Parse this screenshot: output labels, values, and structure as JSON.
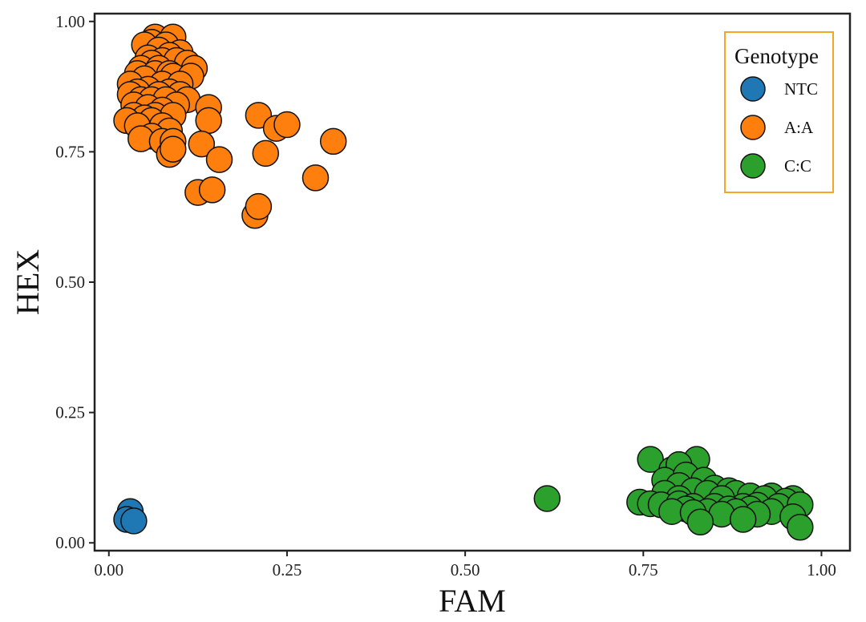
{
  "chart_data": {
    "type": "scatter",
    "xlabel": "FAM",
    "ylabel": "HEX",
    "xlim": [
      -0.02,
      1.04
    ],
    "ylim": [
      -0.015,
      1.015
    ],
    "x_ticks": [
      "0.00",
      "0.25",
      "0.50",
      "0.75",
      "1.00"
    ],
    "y_ticks": [
      "0.00",
      "0.25",
      "0.50",
      "0.75",
      "1.00"
    ],
    "grid": false,
    "legend": {
      "title": "Genotype",
      "placement": "top-right",
      "border_color": "#f5a623"
    },
    "series": [
      {
        "name": "NTC",
        "color": "#1f77b4",
        "points": [
          [
            0.03,
            0.06
          ],
          [
            0.025,
            0.045
          ],
          [
            0.035,
            0.042
          ]
        ]
      },
      {
        "name": "A:A",
        "color": "#ff7f0e",
        "points": [
          [
            0.065,
            0.97
          ],
          [
            0.09,
            0.97
          ],
          [
            0.06,
            0.96
          ],
          [
            0.08,
            0.955
          ],
          [
            0.05,
            0.955
          ],
          [
            0.07,
            0.945
          ],
          [
            0.1,
            0.94
          ],
          [
            0.085,
            0.935
          ],
          [
            0.055,
            0.93
          ],
          [
            0.075,
            0.925
          ],
          [
            0.095,
            0.925
          ],
          [
            0.06,
            0.92
          ],
          [
            0.11,
            0.92
          ],
          [
            0.045,
            0.91
          ],
          [
            0.07,
            0.91
          ],
          [
            0.12,
            0.91
          ],
          [
            0.04,
            0.9
          ],
          [
            0.065,
            0.9
          ],
          [
            0.085,
            0.9
          ],
          [
            0.09,
            0.895
          ],
          [
            0.115,
            0.895
          ],
          [
            0.05,
            0.89
          ],
          [
            0.03,
            0.88
          ],
          [
            0.075,
            0.88
          ],
          [
            0.1,
            0.88
          ],
          [
            0.055,
            0.87
          ],
          [
            0.04,
            0.865
          ],
          [
            0.085,
            0.865
          ],
          [
            0.03,
            0.86
          ],
          [
            0.07,
            0.86
          ],
          [
            0.1,
            0.86
          ],
          [
            0.045,
            0.85
          ],
          [
            0.06,
            0.85
          ],
          [
            0.08,
            0.85
          ],
          [
            0.11,
            0.85
          ],
          [
            0.035,
            0.84
          ],
          [
            0.095,
            0.84
          ],
          [
            0.055,
            0.835
          ],
          [
            0.075,
            0.83
          ],
          [
            0.14,
            0.835
          ],
          [
            0.035,
            0.82
          ],
          [
            0.065,
            0.82
          ],
          [
            0.09,
            0.82
          ],
          [
            0.05,
            0.815
          ],
          [
            0.025,
            0.81
          ],
          [
            0.06,
            0.81
          ],
          [
            0.04,
            0.8
          ],
          [
            0.075,
            0.8
          ],
          [
            0.085,
            0.79
          ],
          [
            0.06,
            0.78
          ],
          [
            0.045,
            0.775
          ],
          [
            0.075,
            0.77
          ],
          [
            0.09,
            0.77
          ],
          [
            0.085,
            0.745
          ],
          [
            0.09,
            0.755
          ],
          [
            0.14,
            0.81
          ],
          [
            0.13,
            0.765
          ],
          [
            0.155,
            0.735
          ],
          [
            0.125,
            0.672
          ],
          [
            0.145,
            0.677
          ],
          [
            0.21,
            0.82
          ],
          [
            0.235,
            0.795
          ],
          [
            0.25,
            0.802
          ],
          [
            0.22,
            0.747
          ],
          [
            0.205,
            0.628
          ],
          [
            0.21,
            0.645
          ],
          [
            0.29,
            0.7
          ],
          [
            0.315,
            0.77
          ]
        ]
      },
      {
        "name": "C:C",
        "color": "#2ca02c",
        "points": [
          [
            0.615,
            0.085
          ],
          [
            0.76,
            0.16
          ],
          [
            0.825,
            0.16
          ],
          [
            0.79,
            0.14
          ],
          [
            0.8,
            0.15
          ],
          [
            0.78,
            0.12
          ],
          [
            0.81,
            0.13
          ],
          [
            0.835,
            0.12
          ],
          [
            0.8,
            0.11
          ],
          [
            0.85,
            0.105
          ],
          [
            0.82,
            0.1
          ],
          [
            0.87,
            0.1
          ],
          [
            0.88,
            0.095
          ],
          [
            0.78,
            0.095
          ],
          [
            0.84,
            0.095
          ],
          [
            0.9,
            0.09
          ],
          [
            0.93,
            0.09
          ],
          [
            0.96,
            0.085
          ],
          [
            0.8,
            0.085
          ],
          [
            0.86,
            0.085
          ],
          [
            0.92,
            0.085
          ],
          [
            0.95,
            0.08
          ],
          [
            0.745,
            0.078
          ],
          [
            0.76,
            0.075
          ],
          [
            0.775,
            0.073
          ],
          [
            0.8,
            0.075
          ],
          [
            0.82,
            0.07
          ],
          [
            0.85,
            0.07
          ],
          [
            0.89,
            0.07
          ],
          [
            0.91,
            0.072
          ],
          [
            0.94,
            0.07
          ],
          [
            0.97,
            0.073
          ],
          [
            0.81,
            0.065
          ],
          [
            0.87,
            0.065
          ],
          [
            0.9,
            0.065
          ],
          [
            0.93,
            0.06
          ],
          [
            0.79,
            0.06
          ],
          [
            0.84,
            0.06
          ],
          [
            0.88,
            0.06
          ],
          [
            0.91,
            0.055
          ],
          [
            0.86,
            0.055
          ],
          [
            0.82,
            0.058
          ],
          [
            0.96,
            0.05
          ],
          [
            0.83,
            0.04
          ],
          [
            0.89,
            0.045
          ],
          [
            0.97,
            0.03
          ]
        ]
      }
    ]
  }
}
